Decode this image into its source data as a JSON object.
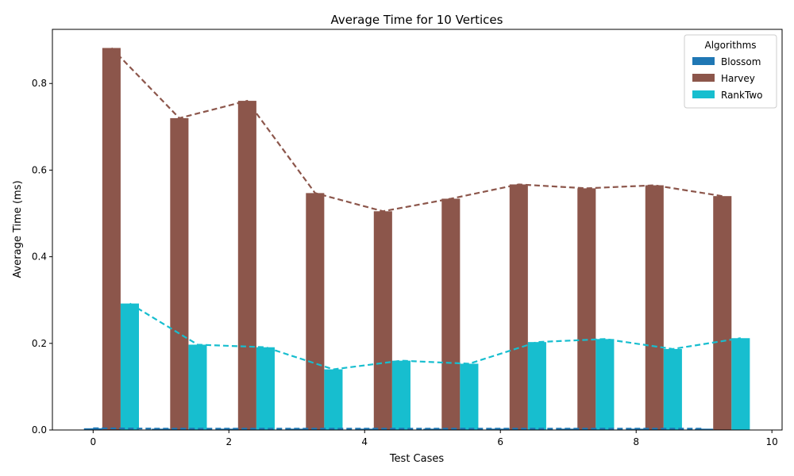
{
  "chart_data": {
    "type": "bar",
    "title": "Average Time for 10 Vertices",
    "xlabel": "Test Cases",
    "ylabel": "Average Time (ms)",
    "x": [
      0,
      1,
      2,
      3,
      4,
      5,
      6,
      7,
      8,
      9
    ],
    "xlim": [
      -0.6,
      10.15
    ],
    "ylim": [
      0,
      0.925
    ],
    "xticks": [
      0,
      2,
      4,
      6,
      8,
      10
    ],
    "yticks": [
      0.0,
      0.2,
      0.4,
      0.6,
      0.8
    ],
    "bar_width": 0.27,
    "trend_lines": "dashed",
    "legend": {
      "title": "Algorithms",
      "position": "top-right"
    },
    "series": [
      {
        "name": "Blossom",
        "color": "#1f77b4",
        "offset": 0.0,
        "values": [
          0.004,
          0.003,
          0.003,
          0.003,
          0.003,
          0.003,
          0.003,
          0.003,
          0.003,
          0.003
        ]
      },
      {
        "name": "Harvey",
        "color": "#8c564b",
        "offset": 0.27,
        "values": [
          0.882,
          0.72,
          0.76,
          0.547,
          0.505,
          0.534,
          0.567,
          0.558,
          0.565,
          0.54
        ]
      },
      {
        "name": "RankTwo",
        "color": "#17becf",
        "offset": 0.54,
        "values": [
          0.292,
          0.197,
          0.191,
          0.14,
          0.16,
          0.153,
          0.203,
          0.21,
          0.187,
          0.212
        ]
      }
    ]
  }
}
